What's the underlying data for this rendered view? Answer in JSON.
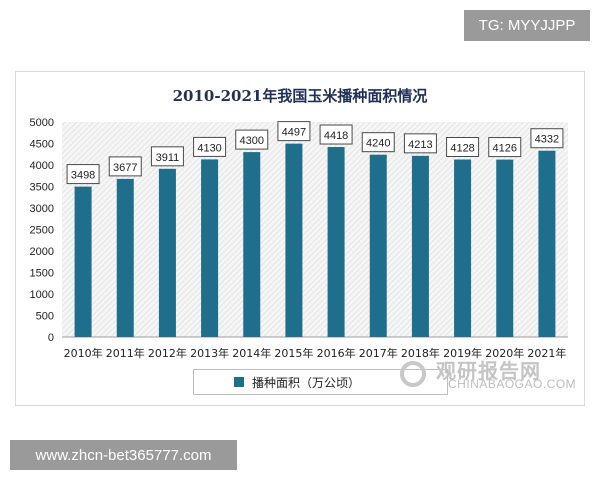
{
  "tg_badge": "TG: MYYJJPP",
  "url_badge": "www.zhcn-bet365777.com",
  "watermark": {
    "cn": "观研报告网",
    "en": "CHINABAOGAO.COM"
  },
  "colors": {
    "bar": "#1f6e8c",
    "title": "#1f2f56",
    "plot_bg_stripe": "#e8e8e8"
  },
  "chart_data": {
    "type": "bar",
    "title": "2010-2021年我国玉米播种面积情况",
    "categories": [
      "2010年",
      "2011年",
      "2012年",
      "2013年",
      "2014年",
      "2015年",
      "2016年",
      "2017年",
      "2018年",
      "2019年",
      "2020年",
      "2021年"
    ],
    "series": [
      {
        "name": "播种面积（万公顷）",
        "values": [
          3498,
          3677,
          3911,
          4130,
          4300,
          4497,
          4418,
          4240,
          4213,
          4128,
          4126,
          4332
        ]
      }
    ],
    "yticks": [
      0,
      500,
      1000,
      1500,
      2000,
      2500,
      3000,
      3500,
      4000,
      4500,
      5000
    ],
    "ylim": [
      0,
      5000
    ],
    "legend": "bottom",
    "grid": false,
    "data_labels": true
  }
}
